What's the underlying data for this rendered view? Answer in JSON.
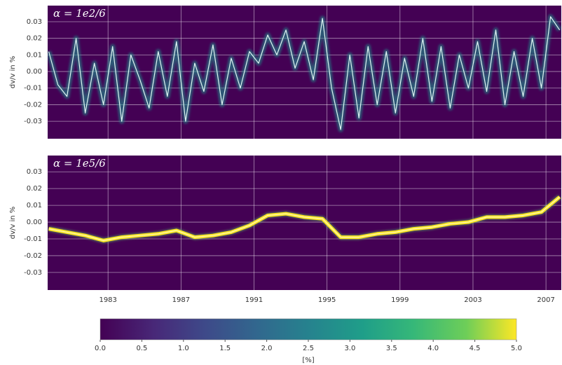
{
  "chart_data": [
    {
      "type": "line",
      "title": "α = 1e2/6",
      "y_label": "dv/v in %",
      "x": [
        1979.75,
        1980.25,
        1980.75,
        1981.25,
        1981.75,
        1982.25,
        1982.75,
        1983.25,
        1983.75,
        1984.25,
        1984.75,
        1985.25,
        1985.75,
        1986.25,
        1986.75,
        1987.25,
        1987.75,
        1988.25,
        1988.75,
        1989.25,
        1989.75,
        1990.25,
        1990.75,
        1991.25,
        1991.75,
        1992.25,
        1992.75,
        1993.25,
        1993.75,
        1994.25,
        1994.75,
        1995.25,
        1995.75,
        1996.25,
        1996.75,
        1997.25,
        1997.75,
        1998.25,
        1998.75,
        1999.25,
        1999.75,
        2000.25,
        2000.75,
        2001.25,
        2001.75,
        2002.25,
        2002.75,
        2003.25,
        2003.75,
        2004.25,
        2004.75,
        2005.25,
        2005.75,
        2006.25,
        2006.75,
        2007.25,
        2007.75
      ],
      "series": [
        {
          "color": "#e0f3f3",
          "values": [
            0.012,
            -0.008,
            -0.015,
            0.02,
            -0.025,
            0.005,
            -0.02,
            0.015,
            -0.03,
            0.01,
            -0.005,
            -0.022,
            0.012,
            -0.015,
            0.018,
            -0.03,
            0.005,
            -0.012,
            0.016,
            -0.02,
            0.008,
            -0.01,
            0.012,
            0.005,
            0.022,
            0.01,
            0.025,
            0.002,
            0.018,
            -0.005,
            0.032,
            -0.01,
            -0.035,
            0.01,
            -0.028,
            0.015,
            -0.02,
            0.012,
            -0.025,
            0.008,
            -0.015,
            0.02,
            -0.018,
            0.015,
            -0.022,
            0.01,
            -0.01,
            0.018,
            -0.012,
            0.025,
            -0.02,
            0.012,
            -0.015,
            0.02,
            -0.01,
            0.033,
            0.025
          ]
        }
      ],
      "xlim": [
        1979.69,
        2007.84
      ],
      "xticks": [
        1983,
        1987,
        1991,
        1995,
        1999,
        2003,
        2007
      ],
      "show_xtick_labels": false,
      "ylim": [
        -0.0405,
        0.0397
      ],
      "yticks": [
        {
          "value": -0.03,
          "label": "-0.03"
        },
        {
          "value": -0.02,
          "label": "-0.02"
        },
        {
          "value": -0.01,
          "label": "-0.01"
        },
        {
          "value": 0,
          "label": "0.00"
        },
        {
          "value": 0.01,
          "label": "0.01"
        },
        {
          "value": 0.02,
          "label": "0.02"
        },
        {
          "value": 0.03,
          "label": "0.03"
        }
      ],
      "grid": true
    },
    {
      "type": "line",
      "title": "α = 1e5/6",
      "y_label": "dv/v in %",
      "x": [
        1979.75,
        1980.75,
        1981.75,
        1982.75,
        1983.75,
        1984.75,
        1985.75,
        1986.75,
        1987.75,
        1988.75,
        1989.75,
        1990.75,
        1991.75,
        1992.75,
        1993.75,
        1994.75,
        1995.75,
        1996.75,
        1997.75,
        1998.75,
        1999.75,
        2000.75,
        2001.75,
        2002.75,
        2003.75,
        2004.75,
        2005.75,
        2006.75,
        2007.75
      ],
      "series": [
        {
          "color": "#fde725",
          "values": [
            -0.004,
            -0.006,
            -0.008,
            -0.011,
            -0.009,
            -0.008,
            -0.007,
            -0.005,
            -0.009,
            -0.008,
            -0.006,
            -0.002,
            0.004,
            0.005,
            0.003,
            0.002,
            -0.009,
            -0.009,
            -0.007,
            -0.006,
            -0.004,
            -0.003,
            -0.001,
            0.0,
            0.003,
            0.003,
            0.004,
            0.006,
            0.015
          ]
        }
      ],
      "xlim": [
        1979.69,
        2007.84
      ],
      "xticks": [
        1983,
        1987,
        1991,
        1995,
        1999,
        2003,
        2007
      ],
      "show_xtick_labels": true,
      "ylim": [
        -0.0405,
        0.0397
      ],
      "yticks": [
        {
          "value": -0.03,
          "label": "-0.03"
        },
        {
          "value": -0.02,
          "label": "-0.02"
        },
        {
          "value": -0.01,
          "label": "-0.01"
        },
        {
          "value": 0,
          "label": "0.00"
        },
        {
          "value": 0.01,
          "label": "0.01"
        },
        {
          "value": 0.02,
          "label": "0.02"
        },
        {
          "value": 0.03,
          "label": "0.03"
        }
      ],
      "grid": true
    }
  ],
  "colorbar": {
    "clim": [
      0,
      5
    ],
    "label": "[%]",
    "ticks": [
      {
        "value": 0,
        "label": "0.0"
      },
      {
        "value": 0.5,
        "label": "0.5"
      },
      {
        "value": 1,
        "label": "1.0"
      },
      {
        "value": 1.5,
        "label": "1.5"
      },
      {
        "value": 2,
        "label": "2.0"
      },
      {
        "value": 2.5,
        "label": "2.5"
      },
      {
        "value": 3,
        "label": "3.0"
      },
      {
        "value": 3.5,
        "label": "3.5"
      },
      {
        "value": 4,
        "label": "4.0"
      },
      {
        "value": 4.5,
        "label": "4.5"
      },
      {
        "value": 5,
        "label": "5.0"
      }
    ]
  }
}
